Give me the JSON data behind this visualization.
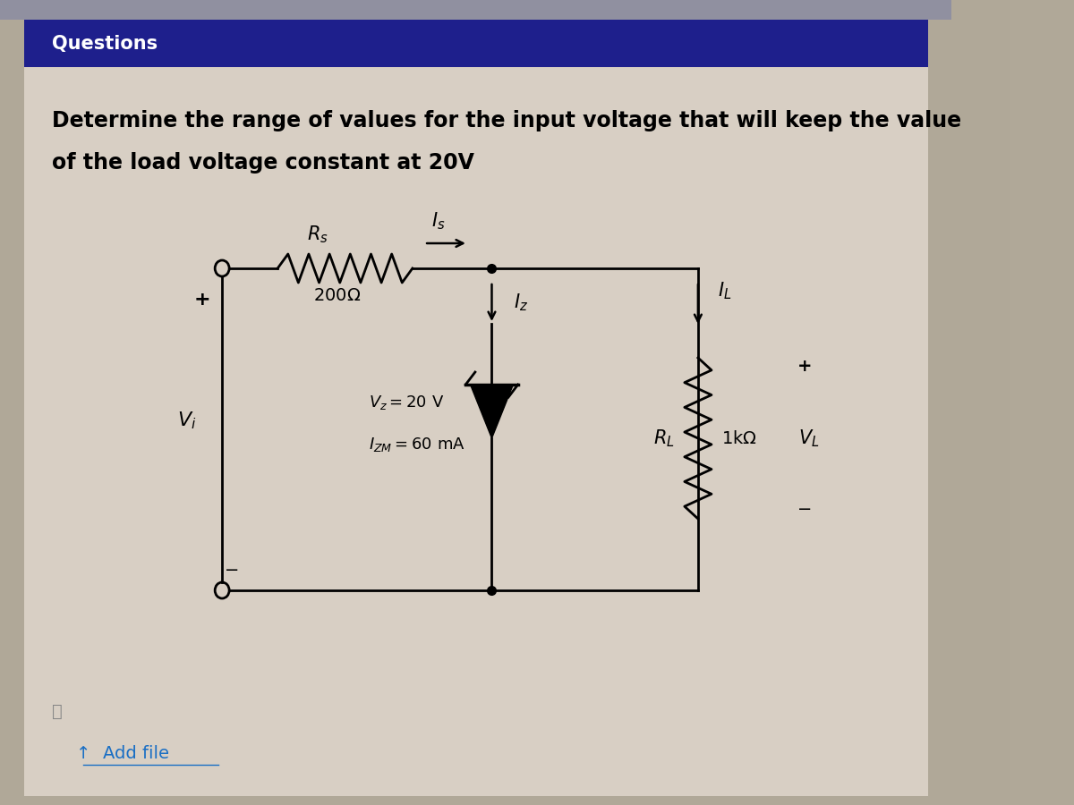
{
  "header_text": "Questions",
  "header_bg": "#1e1f8c",
  "header_text_color": "#ffffff",
  "outer_bg": "#b0a898",
  "inner_bg": "#d8cfc4",
  "question_line1": "Determine the range of values for the input voltage that will keep the value",
  "question_line2": "of the load voltage constant at 20V",
  "question_fontsize": 17,
  "line_color": "#000000",
  "lw": 2.0,
  "top_bar_color": "#c0c0c8"
}
